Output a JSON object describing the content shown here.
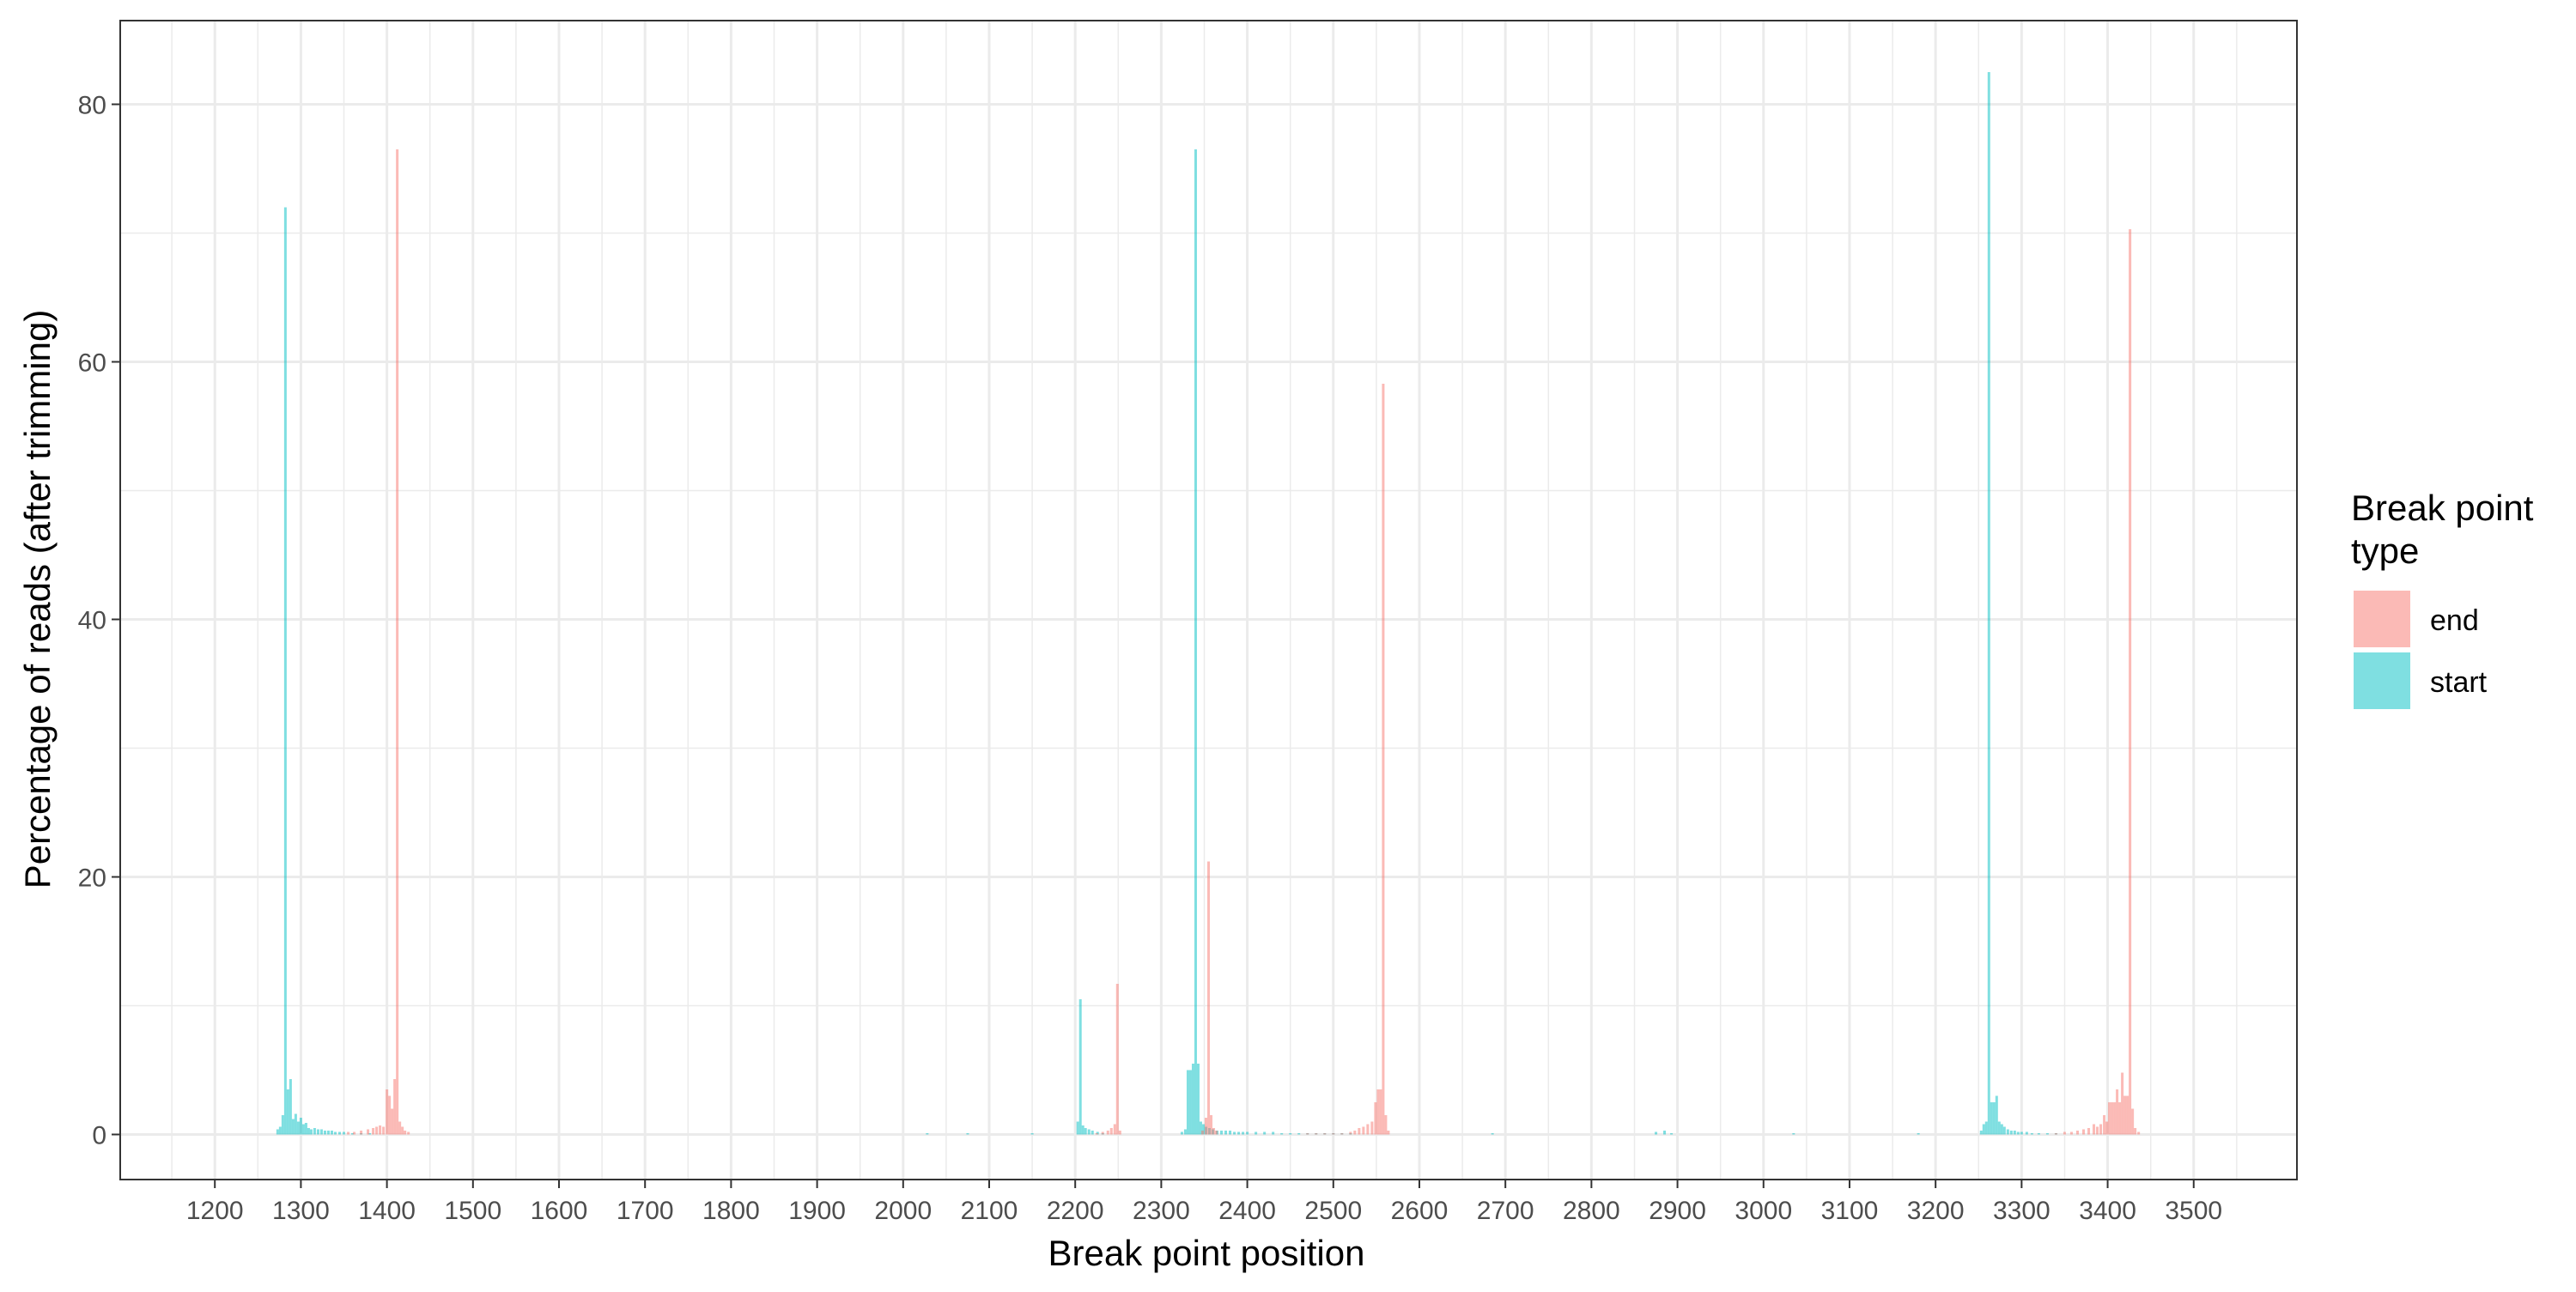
{
  "chart_data": {
    "type": "bar",
    "title": "",
    "xlabel": "Break point position",
    "ylabel": "Percentage of reads (after trimming)",
    "xlim": [
      1090,
      3620
    ],
    "ylim": [
      -3.5,
      86.5
    ],
    "x_ticks": [
      1200,
      1300,
      1400,
      1500,
      1600,
      1700,
      1800,
      1900,
      2000,
      2100,
      2200,
      2300,
      2400,
      2500,
      2600,
      2700,
      2800,
      2900,
      3000,
      3100,
      3200,
      3300,
      3400,
      3500
    ],
    "y_ticks": [
      0,
      20,
      40,
      60,
      80
    ],
    "grid": true,
    "legend": {
      "title": "Break point type",
      "position": "right",
      "entries": [
        "end",
        "start"
      ]
    },
    "colors": {
      "end": "#F8766D",
      "start": "#00BFC4"
    },
    "series": [
      {
        "name": "start",
        "points": [
          [
            1273,
            0.4
          ],
          [
            1276,
            0.6
          ],
          [
            1279,
            1.5
          ],
          [
            1282,
            72.0
          ],
          [
            1285,
            3.5
          ],
          [
            1288,
            4.3
          ],
          [
            1291,
            1.2
          ],
          [
            1294,
            1.6
          ],
          [
            1297,
            1.0
          ],
          [
            1300,
            1.3
          ],
          [
            1303,
            0.8
          ],
          [
            1306,
            0.9
          ],
          [
            1309,
            0.5
          ],
          [
            1312,
            0.4
          ],
          [
            1316,
            0.5
          ],
          [
            1320,
            0.4
          ],
          [
            1324,
            0.4
          ],
          [
            1328,
            0.3
          ],
          [
            1332,
            0.3
          ],
          [
            1336,
            0.3
          ],
          [
            1340,
            0.2
          ],
          [
            1345,
            0.2
          ],
          [
            1350,
            0.2
          ],
          [
            1360,
            0.1
          ],
          [
            1370,
            0.1
          ],
          [
            1380,
            0.1
          ],
          [
            2028,
            0.1
          ],
          [
            2075,
            0.1
          ],
          [
            2150,
            0.1
          ],
          [
            2203,
            1.0
          ],
          [
            2206,
            10.5
          ],
          [
            2209,
            0.7
          ],
          [
            2212,
            0.5
          ],
          [
            2216,
            0.4
          ],
          [
            2220,
            0.3
          ],
          [
            2226,
            0.2
          ],
          [
            2232,
            0.1
          ],
          [
            2324,
            0.2
          ],
          [
            2328,
            0.4
          ],
          [
            2331,
            5.0
          ],
          [
            2334,
            5.0
          ],
          [
            2337,
            5.5
          ],
          [
            2340,
            76.5
          ],
          [
            2343,
            5.5
          ],
          [
            2346,
            1.0
          ],
          [
            2349,
            0.8
          ],
          [
            2352,
            0.6
          ],
          [
            2356,
            0.5
          ],
          [
            2360,
            0.4
          ],
          [
            2365,
            0.3
          ],
          [
            2370,
            0.3
          ],
          [
            2375,
            0.3
          ],
          [
            2380,
            0.3
          ],
          [
            2385,
            0.2
          ],
          [
            2390,
            0.2
          ],
          [
            2395,
            0.2
          ],
          [
            2400,
            0.2
          ],
          [
            2410,
            0.2
          ],
          [
            2420,
            0.2
          ],
          [
            2430,
            0.2
          ],
          [
            2440,
            0.1
          ],
          [
            2450,
            0.1
          ],
          [
            2460,
            0.1
          ],
          [
            2470,
            0.1
          ],
          [
            2480,
            0.1
          ],
          [
            2490,
            0.1
          ],
          [
            2500,
            0.1
          ],
          [
            2510,
            0.1
          ],
          [
            2520,
            0.1
          ],
          [
            2685,
            0.1
          ],
          [
            2875,
            0.2
          ],
          [
            2885,
            0.3
          ],
          [
            2893,
            0.1
          ],
          [
            3035,
            0.1
          ],
          [
            3180,
            0.1
          ],
          [
            3253,
            0.3
          ],
          [
            3256,
            0.8
          ],
          [
            3259,
            1.0
          ],
          [
            3262,
            82.5
          ],
          [
            3265,
            2.5
          ],
          [
            3268,
            2.5
          ],
          [
            3271,
            3.0
          ],
          [
            3274,
            1.0
          ],
          [
            3277,
            0.8
          ],
          [
            3280,
            0.6
          ],
          [
            3284,
            0.4
          ],
          [
            3288,
            0.3
          ],
          [
            3292,
            0.3
          ],
          [
            3296,
            0.2
          ],
          [
            3300,
            0.2
          ],
          [
            3306,
            0.2
          ],
          [
            3312,
            0.1
          ],
          [
            3320,
            0.1
          ],
          [
            3330,
            0.1
          ],
          [
            3340,
            0.1
          ]
        ]
      },
      {
        "name": "end",
        "points": [
          [
            1355,
            0.2
          ],
          [
            1362,
            0.2
          ],
          [
            1370,
            0.3
          ],
          [
            1378,
            0.4
          ],
          [
            1384,
            0.5
          ],
          [
            1388,
            0.6
          ],
          [
            1392,
            0.7
          ],
          [
            1396,
            0.6
          ],
          [
            1400,
            3.5
          ],
          [
            1403,
            3.0
          ],
          [
            1406,
            2.0
          ],
          [
            1409,
            4.3
          ],
          [
            1412,
            76.5
          ],
          [
            1415,
            1.0
          ],
          [
            1418,
            0.6
          ],
          [
            1421,
            0.3
          ],
          [
            1425,
            0.2
          ],
          [
            2225,
            0.1
          ],
          [
            2232,
            0.2
          ],
          [
            2238,
            0.3
          ],
          [
            2242,
            0.5
          ],
          [
            2246,
            0.8
          ],
          [
            2249,
            11.7
          ],
          [
            2252,
            0.3
          ],
          [
            2348,
            0.3
          ],
          [
            2352,
            1.3
          ],
          [
            2355,
            21.2
          ],
          [
            2358,
            1.5
          ],
          [
            2361,
            0.5
          ],
          [
            2364,
            0.3
          ],
          [
            2470,
            0.1
          ],
          [
            2480,
            0.1
          ],
          [
            2490,
            0.1
          ],
          [
            2500,
            0.1
          ],
          [
            2510,
            0.1
          ],
          [
            2520,
            0.2
          ],
          [
            2525,
            0.3
          ],
          [
            2530,
            0.5
          ],
          [
            2535,
            0.6
          ],
          [
            2540,
            0.8
          ],
          [
            2545,
            1.0
          ],
          [
            2549,
            2.5
          ],
          [
            2552,
            3.5
          ],
          [
            2555,
            3.5
          ],
          [
            2558,
            58.3
          ],
          [
            2561,
            1.5
          ],
          [
            2564,
            0.3
          ],
          [
            3340,
            0.1
          ],
          [
            3350,
            0.2
          ],
          [
            3358,
            0.2
          ],
          [
            3365,
            0.3
          ],
          [
            3372,
            0.4
          ],
          [
            3378,
            0.5
          ],
          [
            3384,
            0.8
          ],
          [
            3388,
            0.6
          ],
          [
            3392,
            0.8
          ],
          [
            3396,
            1.5
          ],
          [
            3399,
            1.0
          ],
          [
            3402,
            2.5
          ],
          [
            3405,
            2.5
          ],
          [
            3408,
            2.5
          ],
          [
            3411,
            3.5
          ],
          [
            3414,
            2.5
          ],
          [
            3417,
            4.8
          ],
          [
            3420,
            3.0
          ],
          [
            3423,
            3.0
          ],
          [
            3426,
            70.3
          ],
          [
            3429,
            2.0
          ],
          [
            3432,
            0.5
          ],
          [
            3436,
            0.2
          ]
        ]
      }
    ]
  }
}
